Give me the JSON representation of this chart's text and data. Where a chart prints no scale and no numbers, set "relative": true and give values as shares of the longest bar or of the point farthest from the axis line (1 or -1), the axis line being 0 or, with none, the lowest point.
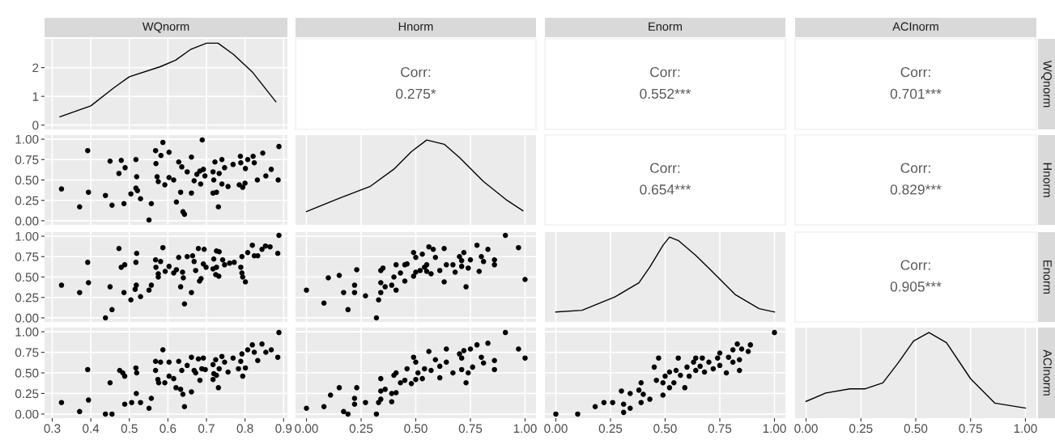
{
  "chart_data": [
    {
      "type": "line",
      "title": "WQnorm",
      "x": [
        0.32,
        0.4,
        0.46,
        0.5,
        0.58,
        0.62,
        0.66,
        0.7,
        0.73,
        0.77,
        0.82,
        0.88
      ],
      "values": [
        0.29,
        0.67,
        1.3,
        1.68,
        2.03,
        2.26,
        2.64,
        2.85,
        2.85,
        2.46,
        1.83,
        0.81
      ],
      "color": "#000000",
      "xlim": [
        0.28,
        0.91
      ],
      "xticks": [
        0.3,
        0.4,
        0.5,
        0.6,
        0.7,
        0.8,
        0.9
      ],
      "ylim": [
        -0.15,
        3.0
      ],
      "yticks": [
        0,
        1,
        2
      ],
      "grid": true,
      "tick_labels": "y"
    },
    {
      "type": "other",
      "title": "Hnorm",
      "annotations": [
        "Corr:",
        "0.275*"
      ]
    },
    {
      "type": "other",
      "title": "Enorm",
      "annotations": [
        "Corr:",
        "0.552***"
      ]
    },
    {
      "type": "other",
      "title": "ACInorm",
      "y2label": "WQnorm",
      "annotations": [
        "Corr:",
        "0.701***"
      ]
    },
    {
      "type": "scatter",
      "marker": "circle",
      "color": "#000000",
      "x": [
        0.324,
        0.371,
        0.392,
        0.394,
        0.438,
        0.45,
        0.455,
        0.479,
        0.473,
        0.489,
        0.486,
        0.504,
        0.517,
        0.519,
        0.517,
        0.521,
        0.529,
        0.551,
        0.557,
        0.569,
        0.568,
        0.587,
        0.582,
        0.572,
        0.575,
        0.592,
        0.603,
        0.603,
        0.615,
        0.622,
        0.628,
        0.633,
        0.636,
        0.639,
        0.643,
        0.65,
        0.661,
        0.661,
        0.668,
        0.675,
        0.683,
        0.689,
        0.685,
        0.692,
        0.696,
        0.717,
        0.722,
        0.719,
        0.717,
        0.726,
        0.731,
        0.733,
        0.74,
        0.74,
        0.747,
        0.756,
        0.769,
        0.788,
        0.789,
        0.785,
        0.794,
        0.8,
        0.801,
        0.807,
        0.821,
        0.824,
        0.832,
        0.846,
        0.854,
        0.868,
        0.886,
        0.888
      ],
      "values": [
        0.39,
        0.17,
        0.86,
        0.35,
        0.31,
        0.73,
        0.19,
        0.74,
        0.58,
        0.65,
        0.21,
        0.33,
        0.75,
        0.54,
        0.4,
        0.37,
        0.27,
        0.01,
        0.21,
        0.7,
        0.86,
        0.96,
        0.8,
        0.54,
        0.48,
        0.44,
        0.84,
        0.53,
        0.5,
        0.23,
        0.72,
        0.35,
        0.66,
        0.11,
        0.08,
        0.6,
        0.78,
        0.34,
        0.49,
        0.57,
        0.61,
        0.99,
        0.45,
        0.63,
        0.55,
        0.6,
        0.72,
        0.5,
        0.34,
        0.35,
        0.17,
        0.58,
        0.75,
        0.45,
        0.65,
        0.42,
        0.69,
        0.79,
        0.71,
        0.44,
        0.41,
        0.46,
        0.64,
        0.75,
        0.79,
        0.71,
        0.5,
        0.83,
        0.55,
        0.63,
        0.5,
        0.91
      ],
      "xlim": [
        0.28,
        0.91
      ],
      "xticks": [
        0.3,
        0.4,
        0.5,
        0.6,
        0.7,
        0.8,
        0.9
      ],
      "ylim": [
        -0.05,
        1.05
      ],
      "yticks": [
        {
          "value": 0,
          "label": "0.00"
        },
        {
          "value": 0.25,
          "label": "0.25"
        },
        {
          "value": 0.5,
          "label": "0.50"
        },
        {
          "value": 0.75,
          "label": "0.75"
        },
        {
          "value": 1,
          "label": "1.00"
        }
      ],
      "grid": true,
      "tick_labels": "y"
    },
    {
      "type": "line",
      "relative": true,
      "x": [
        0.0,
        0.15,
        0.29,
        0.4,
        0.48,
        0.55,
        0.63,
        0.7,
        0.81,
        0.92,
        0.99
      ],
      "values": [
        0.14,
        0.3,
        0.44,
        0.65,
        0.86,
        1.0,
        0.95,
        0.79,
        0.5,
        0.27,
        0.15
      ],
      "color": "#000000",
      "xlim": [
        -0.05,
        1.05
      ],
      "xticks": [
        0,
        0.25,
        0.5,
        0.75,
        1
      ],
      "grid": "x",
      "tick_labels": false
    },
    {
      "type": "other",
      "annotations": [
        "Corr:",
        "0.654***"
      ]
    },
    {
      "type": "other",
      "y2label": "Hnorm",
      "annotations": [
        "Corr:",
        "0.829***"
      ]
    },
    {
      "type": "scatter",
      "marker": "circle",
      "color": "#000000",
      "x": [
        0.324,
        0.371,
        0.392,
        0.394,
        0.438,
        0.45,
        0.455,
        0.473,
        0.479,
        0.488,
        0.486,
        0.504,
        0.517,
        0.519,
        0.518,
        0.515,
        0.529,
        0.551,
        0.557,
        0.568,
        0.569,
        0.575,
        0.575,
        0.587,
        0.581,
        0.593,
        0.603,
        0.615,
        0.622,
        0.628,
        0.633,
        0.638,
        0.64,
        0.643,
        0.65,
        0.661,
        0.664,
        0.668,
        0.672,
        0.679,
        0.682,
        0.686,
        0.692,
        0.694,
        0.699,
        0.717,
        0.719,
        0.724,
        0.726,
        0.733,
        0.726,
        0.732,
        0.742,
        0.747,
        0.76,
        0.772,
        0.789,
        0.792,
        0.792,
        0.794,
        0.801,
        0.807,
        0.819,
        0.824,
        0.833,
        0.844,
        0.853,
        0.865,
        0.885,
        0.888
      ],
      "values": [
        0.4,
        0.31,
        0.68,
        0.43,
        0.0,
        0.38,
        0.1,
        0.85,
        0.62,
        0.65,
        0.31,
        0.22,
        0.68,
        0.79,
        0.4,
        0.35,
        0.26,
        0.34,
        0.4,
        0.71,
        0.62,
        0.54,
        0.5,
        0.86,
        0.69,
        0.57,
        0.63,
        0.55,
        0.59,
        0.74,
        0.38,
        0.56,
        0.49,
        0.17,
        0.75,
        0.31,
        0.76,
        0.69,
        0.58,
        0.85,
        0.45,
        0.48,
        0.66,
        0.84,
        0.62,
        0.6,
        0.72,
        0.53,
        0.82,
        0.81,
        0.62,
        0.51,
        0.71,
        0.65,
        0.67,
        0.68,
        0.62,
        0.75,
        0.55,
        0.5,
        0.44,
        0.8,
        0.89,
        0.76,
        0.76,
        0.84,
        0.88,
        0.87,
        0.79,
        1.01
      ],
      "xlim": [
        0.28,
        0.91
      ],
      "xticks": [
        0.3,
        0.4,
        0.5,
        0.6,
        0.7,
        0.8,
        0.9
      ],
      "ylim": [
        -0.05,
        1.05
      ],
      "yticks": [
        {
          "value": 0,
          "label": "0.00"
        },
        {
          "value": 0.25,
          "label": "0.25"
        },
        {
          "value": 0.5,
          "label": "0.50"
        },
        {
          "value": 0.75,
          "label": "0.75"
        },
        {
          "value": 1,
          "label": "1.00"
        }
      ],
      "grid": true,
      "tick_labels": "y"
    },
    {
      "type": "scatter",
      "marker": "circle",
      "color": "#000000",
      "x": [
        0.0,
        0.08,
        0.1,
        0.15,
        0.17,
        0.19,
        0.22,
        0.22,
        0.23,
        0.27,
        0.32,
        0.33,
        0.34,
        0.34,
        0.34,
        0.35,
        0.36,
        0.39,
        0.4,
        0.41,
        0.41,
        0.43,
        0.45,
        0.45,
        0.46,
        0.49,
        0.49,
        0.5,
        0.5,
        0.53,
        0.52,
        0.54,
        0.55,
        0.56,
        0.55,
        0.57,
        0.58,
        0.59,
        0.61,
        0.63,
        0.63,
        0.64,
        0.67,
        0.68,
        0.7,
        0.71,
        0.71,
        0.72,
        0.73,
        0.74,
        0.75,
        0.78,
        0.79,
        0.8,
        0.81,
        0.83,
        0.86,
        0.86,
        0.91,
        0.97,
        1.0
      ],
      "values": [
        0.34,
        0.18,
        0.49,
        0.52,
        0.31,
        0.1,
        0.4,
        0.31,
        0.59,
        0.27,
        0.0,
        0.22,
        0.31,
        0.43,
        0.58,
        0.61,
        0.38,
        0.4,
        0.5,
        0.34,
        0.65,
        0.55,
        0.45,
        0.65,
        0.66,
        0.51,
        0.8,
        0.74,
        0.56,
        0.78,
        0.58,
        0.62,
        0.57,
        0.87,
        0.65,
        0.54,
        0.84,
        0.74,
        0.58,
        0.44,
        0.85,
        0.65,
        0.65,
        0.56,
        0.75,
        0.63,
        0.7,
        0.8,
        0.38,
        0.61,
        0.71,
        0.89,
        0.57,
        0.75,
        0.69,
        0.84,
        0.65,
        0.71,
        1.01,
        0.86,
        0.47
      ],
      "xlim": [
        -0.05,
        1.05
      ],
      "xticks": [
        0,
        0.25,
        0.5,
        0.75,
        1
      ],
      "ylim": [
        -0.05,
        1.05
      ],
      "yticks": [
        0,
        0.25,
        0.5,
        0.75,
        1
      ],
      "grid": true,
      "tick_labels": false
    },
    {
      "type": "line",
      "relative": true,
      "x": [
        0.0,
        0.12,
        0.27,
        0.38,
        0.43,
        0.49,
        0.52,
        0.56,
        0.64,
        0.71,
        0.82,
        0.93,
        1.0
      ],
      "values": [
        0.1,
        0.12,
        0.28,
        0.45,
        0.64,
        0.9,
        1.0,
        0.96,
        0.78,
        0.6,
        0.31,
        0.14,
        0.1
      ],
      "color": "#000000",
      "xlim": [
        -0.05,
        1.05
      ],
      "xticks": [
        0,
        0.25,
        0.5,
        0.75,
        1
      ],
      "grid": "x",
      "tick_labels": false
    },
    {
      "type": "other",
      "y2label": "Enorm",
      "annotations": [
        "Corr:",
        "0.905***"
      ]
    },
    {
      "type": "scatter",
      "marker": "circle",
      "color": "#000000",
      "x": [
        0.324,
        0.371,
        0.392,
        0.394,
        0.438,
        0.455,
        0.45,
        0.475,
        0.483,
        0.488,
        0.488,
        0.506,
        0.517,
        0.519,
        0.518,
        0.529,
        0.551,
        0.557,
        0.568,
        0.568,
        0.574,
        0.576,
        0.587,
        0.581,
        0.592,
        0.603,
        0.603,
        0.615,
        0.621,
        0.628,
        0.633,
        0.636,
        0.639,
        0.643,
        0.65,
        0.661,
        0.661,
        0.668,
        0.672,
        0.679,
        0.683,
        0.688,
        0.692,
        0.697,
        0.717,
        0.719,
        0.717,
        0.724,
        0.726,
        0.731,
        0.733,
        0.74,
        0.747,
        0.756,
        0.769,
        0.783,
        0.792,
        0.789,
        0.794,
        0.801,
        0.807,
        0.819,
        0.824,
        0.833,
        0.844,
        0.854,
        0.868,
        0.885,
        0.888
      ],
      "values": [
        0.14,
        0.03,
        0.54,
        0.17,
        0.0,
        0.0,
        0.38,
        0.53,
        0.5,
        0.46,
        0.12,
        0.14,
        0.56,
        0.5,
        0.25,
        0.14,
        0.07,
        0.19,
        0.64,
        0.53,
        0.42,
        0.38,
        0.78,
        0.63,
        0.38,
        0.63,
        0.46,
        0.43,
        0.32,
        0.64,
        0.3,
        0.53,
        0.24,
        0.09,
        0.59,
        0.69,
        0.27,
        0.53,
        0.5,
        0.67,
        0.41,
        0.55,
        0.68,
        0.54,
        0.6,
        0.49,
        0.42,
        0.66,
        0.47,
        0.32,
        0.55,
        0.7,
        0.63,
        0.51,
        0.68,
        0.55,
        0.73,
        0.64,
        0.46,
        0.56,
        0.78,
        0.84,
        0.75,
        0.65,
        0.85,
        0.75,
        0.78,
        0.69,
        0.99
      ],
      "xlim": [
        0.28,
        0.91
      ],
      "xticks": [
        0.3,
        0.4,
        0.5,
        0.6,
        0.7,
        0.8,
        0.9
      ],
      "ylim": [
        -0.05,
        1.05
      ],
      "yticks": [
        {
          "value": 0,
          "label": "0.00"
        },
        {
          "value": 0.25,
          "label": "0.25"
        },
        {
          "value": 0.5,
          "label": "0.50"
        },
        {
          "value": 0.75,
          "label": "0.75"
        },
        {
          "value": 1,
          "label": "1.00"
        }
      ],
      "grid": true
    },
    {
      "type": "scatter",
      "marker": "circle",
      "color": "#000000",
      "x": [
        0.0,
        0.08,
        0.11,
        0.15,
        0.17,
        0.19,
        0.22,
        0.22,
        0.23,
        0.27,
        0.32,
        0.33,
        0.34,
        0.34,
        0.34,
        0.36,
        0.39,
        0.39,
        0.4,
        0.41,
        0.41,
        0.43,
        0.45,
        0.46,
        0.48,
        0.49,
        0.5,
        0.5,
        0.51,
        0.53,
        0.54,
        0.56,
        0.57,
        0.59,
        0.61,
        0.61,
        0.64,
        0.64,
        0.67,
        0.7,
        0.71,
        0.71,
        0.72,
        0.73,
        0.74,
        0.75,
        0.76,
        0.78,
        0.8,
        0.81,
        0.83,
        0.86,
        0.86,
        0.91,
        0.97,
        1.0
      ],
      "values": [
        0.07,
        0.09,
        0.23,
        0.32,
        0.03,
        0.0,
        0.19,
        0.12,
        0.32,
        0.14,
        0.0,
        0.14,
        0.18,
        0.28,
        0.43,
        0.3,
        0.25,
        0.15,
        0.47,
        0.26,
        0.5,
        0.38,
        0.41,
        0.55,
        0.37,
        0.69,
        0.63,
        0.42,
        0.5,
        0.43,
        0.55,
        0.76,
        0.53,
        0.66,
        0.44,
        0.58,
        0.79,
        0.63,
        0.5,
        0.73,
        0.54,
        0.68,
        0.77,
        0.38,
        0.5,
        0.79,
        0.57,
        0.84,
        0.69,
        0.62,
        0.86,
        0.65,
        0.54,
        0.99,
        0.79,
        0.68
      ],
      "xlim": [
        -0.05,
        1.05
      ],
      "xticks": [
        {
          "value": 0,
          "label": "0.00"
        },
        {
          "value": 0.25,
          "label": "0.25"
        },
        {
          "value": 0.5,
          "label": "0.50"
        },
        {
          "value": 0.75,
          "label": "0.75"
        },
        {
          "value": 1,
          "label": "1.00"
        }
      ],
      "ylim": [
        -0.05,
        1.05
      ],
      "yticks": [
        0,
        0.25,
        0.5,
        0.75,
        1
      ],
      "grid": true,
      "tick_labels": "x"
    },
    {
      "type": "scatter",
      "marker": "circle",
      "color": "#000000",
      "x": [
        0.0,
        0.1,
        0.18,
        0.22,
        0.26,
        0.3,
        0.31,
        0.31,
        0.34,
        0.34,
        0.38,
        0.39,
        0.39,
        0.4,
        0.43,
        0.45,
        0.46,
        0.47,
        0.49,
        0.49,
        0.5,
        0.52,
        0.52,
        0.54,
        0.55,
        0.56,
        0.57,
        0.59,
        0.6,
        0.61,
        0.63,
        0.64,
        0.64,
        0.66,
        0.67,
        0.68,
        0.7,
        0.72,
        0.74,
        0.75,
        0.75,
        0.78,
        0.79,
        0.81,
        0.81,
        0.83,
        0.84,
        0.84,
        0.85,
        0.88,
        0.89,
        1.0
      ],
      "values": [
        0.0,
        0.0,
        0.09,
        0.14,
        0.14,
        0.28,
        0.12,
        0.02,
        0.07,
        0.25,
        0.29,
        0.38,
        0.14,
        0.24,
        0.18,
        0.57,
        0.41,
        0.68,
        0.38,
        0.23,
        0.46,
        0.32,
        0.51,
        0.38,
        0.53,
        0.68,
        0.47,
        0.32,
        0.57,
        0.46,
        0.63,
        0.53,
        0.68,
        0.58,
        0.68,
        0.51,
        0.63,
        0.55,
        0.68,
        0.59,
        0.74,
        0.5,
        0.69,
        0.78,
        0.63,
        0.85,
        0.53,
        0.66,
        0.79,
        0.76,
        0.84,
        0.99
      ],
      "xlim": [
        -0.05,
        1.05
      ],
      "xticks": [
        {
          "value": 0,
          "label": "0.00"
        },
        {
          "value": 0.25,
          "label": "0.25"
        },
        {
          "value": 0.5,
          "label": "0.50"
        },
        {
          "value": 0.75,
          "label": "0.75"
        },
        {
          "value": 1,
          "label": "1.00"
        }
      ],
      "ylim": [
        -0.05,
        1.05
      ],
      "yticks": [
        0,
        0.25,
        0.5,
        0.75,
        1
      ],
      "grid": true,
      "tick_labels": "x"
    },
    {
      "type": "line",
      "relative": true,
      "y2label": "ACInorm",
      "x": [
        0.0,
        0.09,
        0.2,
        0.27,
        0.35,
        0.42,
        0.49,
        0.56,
        0.64,
        0.75,
        0.86,
        1.0
      ],
      "values": [
        0.18,
        0.28,
        0.33,
        0.33,
        0.4,
        0.64,
        0.9,
        1.0,
        0.88,
        0.45,
        0.16,
        0.1
      ],
      "color": "#000000",
      "xlim": [
        -0.05,
        1.05
      ],
      "xticks": [
        {
          "value": 0,
          "label": "0.00"
        },
        {
          "value": 0.25,
          "label": "0.25"
        },
        {
          "value": 0.5,
          "label": "0.50"
        },
        {
          "value": 0.75,
          "label": "0.75"
        },
        {
          "value": 1,
          "label": "1.00"
        }
      ],
      "grid": "x",
      "tick_labels": "x"
    }
  ]
}
